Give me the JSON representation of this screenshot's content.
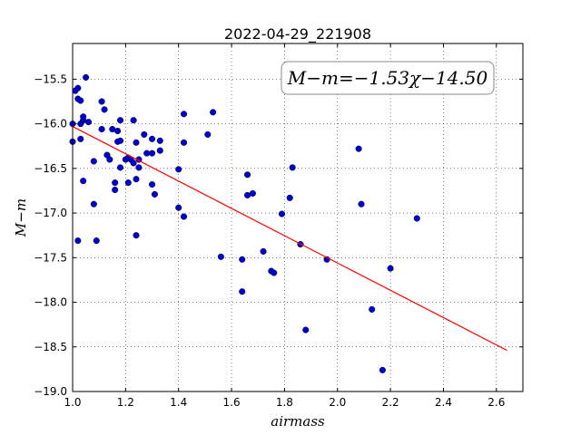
{
  "chart_data": {
    "type": "scatter",
    "title": "2022-04-29_221908",
    "xlabel": "airmass",
    "ylabel": "M−m",
    "xlim": [
      1.0,
      2.7
    ],
    "ylim": [
      -19.0,
      -15.1
    ],
    "y_inverted": true,
    "grid": true,
    "x_ticks": [
      1.0,
      1.2,
      1.4,
      1.6,
      1.8,
      2.0,
      2.2,
      2.4,
      2.6
    ],
    "x_tick_labels": [
      "1.0",
      "1.2",
      "1.4",
      "1.6",
      "1.8",
      "2.0",
      "2.2",
      "2.4",
      "2.6"
    ],
    "y_ticks": [
      -15.5,
      -16.0,
      -16.5,
      -17.0,
      -17.5,
      -18.0,
      -18.5,
      -19.0
    ],
    "y_tick_labels": [
      "−15.5",
      "−16.0",
      "−16.5",
      "−17.0",
      "−17.5",
      "−18.0",
      "−18.5",
      "−19.0"
    ],
    "annotation": "M−m=−1.53χ−14.50",
    "fit_line": {
      "slope": -1.53,
      "intercept": -14.5,
      "x_range": [
        1.0,
        2.64
      ],
      "color": "#ff0000"
    },
    "marker_color": "#0000cc",
    "points": [
      {
        "x": 1.0,
        "y": -16.0
      },
      {
        "x": 1.0,
        "y": -16.2
      },
      {
        "x": 1.01,
        "y": -15.63
      },
      {
        "x": 1.02,
        "y": -15.6
      },
      {
        "x": 1.02,
        "y": -15.72
      },
      {
        "x": 1.03,
        "y": -15.74
      },
      {
        "x": 1.03,
        "y": -16.0
      },
      {
        "x": 1.03,
        "y": -16.17
      },
      {
        "x": 1.04,
        "y": -15.96
      },
      {
        "x": 1.04,
        "y": -15.92
      },
      {
        "x": 1.05,
        "y": -15.48
      },
      {
        "x": 1.04,
        "y": -16.64
      },
      {
        "x": 1.02,
        "y": -17.31
      },
      {
        "x": 1.06,
        "y": -15.98
      },
      {
        "x": 1.08,
        "y": -16.42
      },
      {
        "x": 1.08,
        "y": -16.9
      },
      {
        "x": 1.09,
        "y": -17.31
      },
      {
        "x": 1.11,
        "y": -16.06
      },
      {
        "x": 1.11,
        "y": -15.75
      },
      {
        "x": 1.12,
        "y": -15.84
      },
      {
        "x": 1.13,
        "y": -16.35
      },
      {
        "x": 1.14,
        "y": -16.4
      },
      {
        "x": 1.15,
        "y": -16.06
      },
      {
        "x": 1.16,
        "y": -16.66
      },
      {
        "x": 1.16,
        "y": -16.74
      },
      {
        "x": 1.17,
        "y": -16.08
      },
      {
        "x": 1.17,
        "y": -16.2
      },
      {
        "x": 1.18,
        "y": -15.96
      },
      {
        "x": 1.18,
        "y": -16.19
      },
      {
        "x": 1.18,
        "y": -16.49
      },
      {
        "x": 1.2,
        "y": -16.4
      },
      {
        "x": 1.21,
        "y": -16.38
      },
      {
        "x": 1.21,
        "y": -16.66
      },
      {
        "x": 1.22,
        "y": -16.4
      },
      {
        "x": 1.23,
        "y": -16.44
      },
      {
        "x": 1.23,
        "y": -15.96
      },
      {
        "x": 1.24,
        "y": -16.62
      },
      {
        "x": 1.24,
        "y": -16.21
      },
      {
        "x": 1.25,
        "y": -16.49
      },
      {
        "x": 1.25,
        "y": -16.4
      },
      {
        "x": 1.24,
        "y": -17.25
      },
      {
        "x": 1.27,
        "y": -16.12
      },
      {
        "x": 1.28,
        "y": -16.33
      },
      {
        "x": 1.3,
        "y": -16.33
      },
      {
        "x": 1.3,
        "y": -16.17
      },
      {
        "x": 1.3,
        "y": -16.68
      },
      {
        "x": 1.31,
        "y": -16.79
      },
      {
        "x": 1.33,
        "y": -16.19
      },
      {
        "x": 1.33,
        "y": -16.3
      },
      {
        "x": 1.4,
        "y": -16.51
      },
      {
        "x": 1.4,
        "y": -16.94
      },
      {
        "x": 1.42,
        "y": -15.89
      },
      {
        "x": 1.42,
        "y": -16.21
      },
      {
        "x": 1.42,
        "y": -17.04
      },
      {
        "x": 1.51,
        "y": -16.12
      },
      {
        "x": 1.53,
        "y": -15.87
      },
      {
        "x": 1.56,
        "y": -17.49
      },
      {
        "x": 1.64,
        "y": -17.52
      },
      {
        "x": 1.64,
        "y": -17.88
      },
      {
        "x": 1.66,
        "y": -16.57
      },
      {
        "x": 1.66,
        "y": -16.8
      },
      {
        "x": 1.68,
        "y": -16.78
      },
      {
        "x": 1.72,
        "y": -17.43
      },
      {
        "x": 1.75,
        "y": -17.65
      },
      {
        "x": 1.76,
        "y": -17.67
      },
      {
        "x": 1.79,
        "y": -17.01
      },
      {
        "x": 1.82,
        "y": -16.83
      },
      {
        "x": 1.83,
        "y": -16.49
      },
      {
        "x": 1.86,
        "y": -17.35
      },
      {
        "x": 1.88,
        "y": -18.31
      },
      {
        "x": 1.96,
        "y": -17.52
      },
      {
        "x": 2.08,
        "y": -16.28
      },
      {
        "x": 2.09,
        "y": -16.9
      },
      {
        "x": 2.13,
        "y": -18.08
      },
      {
        "x": 2.17,
        "y": -18.76
      },
      {
        "x": 2.2,
        "y": -17.62
      },
      {
        "x": 2.3,
        "y": -17.06
      }
    ]
  }
}
